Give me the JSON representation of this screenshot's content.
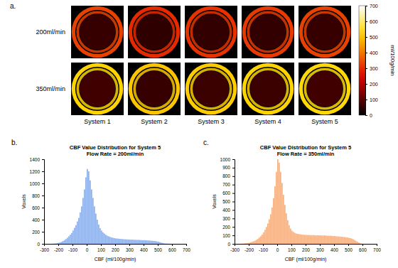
{
  "chart_data": [
    {
      "type": "heatmap",
      "label": "a.",
      "rows": [
        "200ml/min",
        "350ml/min"
      ],
      "columns": [
        "System 1",
        "System 2",
        "System 3",
        "System 4",
        "System 5"
      ],
      "ring_values": [
        [
          330,
          300,
          310,
          320,
          330
        ],
        [
          520,
          500,
          510,
          520,
          530
        ]
      ],
      "core_values": [
        [
          60,
          50,
          55,
          55,
          60
        ],
        [
          70,
          60,
          65,
          65,
          70
        ]
      ],
      "colorbar": {
        "range": [
          0,
          700
        ],
        "ticks": [
          0,
          100,
          200,
          300,
          400,
          500,
          600,
          700
        ],
        "label": "ml/100g/min"
      }
    },
    {
      "type": "histogram",
      "label": "b.",
      "title": "CBF Value Distribution for System 5",
      "subtitle": "Flow Rate = 200ml/min",
      "x_label": "CBF (ml/100g/min)",
      "y_label": "Voxels",
      "color": "#8fb0e6",
      "bins": [
        -250,
        -240,
        -230,
        -220,
        -210,
        -200,
        -190,
        -180,
        -170,
        -160,
        -150,
        -140,
        -130,
        -120,
        -110,
        -100,
        -90,
        -80,
        -70,
        -60,
        -50,
        -40,
        -30,
        -20,
        -10,
        0,
        10,
        20,
        30,
        40,
        50,
        60,
        70,
        80,
        90,
        100,
        110,
        120,
        130,
        140,
        150,
        160,
        170,
        180,
        190,
        200,
        210,
        220,
        230,
        240,
        250,
        260,
        270,
        280,
        290,
        300,
        310,
        320,
        330,
        340,
        350,
        360,
        370,
        380,
        390,
        400,
        410,
        420,
        430,
        440,
        450,
        460,
        470,
        480,
        490,
        500,
        510,
        520,
        530,
        540,
        550,
        560,
        570,
        580,
        590,
        600
      ],
      "counts": [
        2,
        3,
        5,
        8,
        12,
        18,
        25,
        35,
        48,
        62,
        80,
        100,
        125,
        150,
        180,
        220,
        265,
        310,
        370,
        430,
        520,
        620,
        760,
        900,
        1100,
        1240,
        1200,
        1050,
        900,
        760,
        620,
        500,
        400,
        320,
        260,
        220,
        190,
        170,
        150,
        135,
        125,
        115,
        105,
        100,
        95,
        90,
        88,
        85,
        82,
        80,
        78,
        76,
        75,
        73,
        72,
        70,
        70,
        68,
        68,
        66,
        65,
        66,
        64,
        62,
        60,
        62,
        60,
        58,
        56,
        55,
        52,
        50,
        48,
        45,
        40,
        35,
        28,
        20,
        14,
        8,
        5,
        3,
        2,
        1,
        1
      ],
      "xlim": [
        -300,
        700
      ],
      "xticks": [
        -300,
        -200,
        -100,
        0,
        100,
        200,
        300,
        400,
        500,
        600,
        700
      ],
      "ylim": [
        0,
        1400
      ],
      "yticks": [
        0,
        200,
        400,
        600,
        800,
        1000,
        1200,
        1400
      ]
    },
    {
      "type": "histogram",
      "label": "c.",
      "title": "CBF Value Distribution for System 5",
      "subtitle": "Flow Rate = 350ml/min",
      "x_label": "CBF (ml/100g/min)",
      "y_label": "Voxels",
      "color": "#f4b183",
      "bins": [
        -250,
        -240,
        -230,
        -220,
        -210,
        -200,
        -190,
        -180,
        -170,
        -160,
        -150,
        -140,
        -130,
        -120,
        -110,
        -100,
        -90,
        -80,
        -70,
        -60,
        -50,
        -40,
        -30,
        -20,
        -10,
        0,
        10,
        20,
        30,
        40,
        50,
        60,
        70,
        80,
        90,
        100,
        110,
        120,
        130,
        140,
        150,
        160,
        170,
        180,
        190,
        200,
        210,
        220,
        230,
        240,
        250,
        260,
        270,
        280,
        290,
        300,
        310,
        320,
        330,
        340,
        350,
        360,
        370,
        380,
        390,
        400,
        410,
        420,
        430,
        440,
        450,
        460,
        470,
        480,
        490,
        500,
        510,
        520,
        530,
        540,
        550,
        560,
        570,
        580,
        590,
        600
      ],
      "counts": [
        3,
        4,
        6,
        8,
        10,
        14,
        18,
        24,
        30,
        38,
        48,
        60,
        75,
        90,
        110,
        135,
        165,
        200,
        240,
        290,
        350,
        430,
        540,
        680,
        850,
        1000,
        960,
        850,
        720,
        580,
        460,
        360,
        280,
        220,
        180,
        155,
        140,
        130,
        122,
        118,
        115,
        112,
        110,
        108,
        106,
        105,
        104,
        105,
        103,
        102,
        104,
        102,
        100,
        101,
        100,
        100,
        99,
        98,
        100,
        97,
        96,
        95,
        96,
        94,
        92,
        92,
        90,
        88,
        87,
        85,
        84,
        82,
        80,
        78,
        75,
        72,
        68,
        62,
        55,
        45,
        35,
        25,
        15,
        8,
        3
      ],
      "xlim": [
        -300,
        700
      ],
      "xticks": [
        -300,
        -200,
        -100,
        0,
        100,
        200,
        300,
        400,
        500,
        600,
        700
      ],
      "ylim": [
        0,
        1000
      ],
      "yticks": [
        0,
        100,
        200,
        300,
        400,
        500,
        600,
        700,
        800,
        900,
        1000
      ]
    }
  ]
}
